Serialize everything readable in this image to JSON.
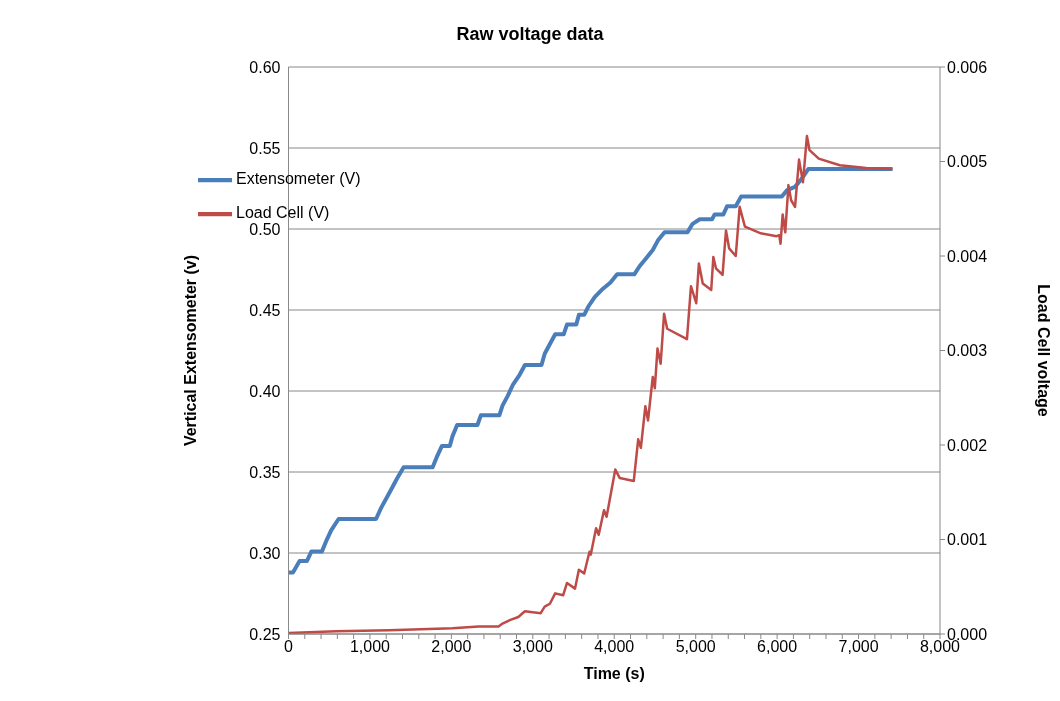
{
  "chart_data": {
    "type": "line",
    "title": "Raw voltage data",
    "xlabel": "Time (s)",
    "ylabel": "Vertical Extensometer (v)",
    "y2label": "Load Cell voltage",
    "xlim": [
      0,
      8000
    ],
    "xticks": [
      0,
      {
        "value": 200,
        "label": null
      },
      {
        "value": 400,
        "label": null
      },
      {
        "value": 600,
        "label": null
      },
      {
        "value": 800,
        "label": null
      },
      {
        "value": 1000,
        "label": "1,000"
      },
      {
        "value": 1200,
        "label": null
      },
      {
        "value": 1400,
        "label": null
      },
      {
        "value": 1600,
        "label": null
      },
      {
        "value": 1800,
        "label": null
      },
      {
        "value": 2000,
        "label": "2,000"
      },
      {
        "value": 2200,
        "label": null
      },
      {
        "value": 2400,
        "label": null
      },
      {
        "value": 2600,
        "label": null
      },
      {
        "value": 2800,
        "label": null
      },
      {
        "value": 3000,
        "label": "3,000"
      },
      {
        "value": 3200,
        "label": null
      },
      {
        "value": 3400,
        "label": null
      },
      {
        "value": 3600,
        "label": null
      },
      {
        "value": 3800,
        "label": null
      },
      {
        "value": 4000,
        "label": "4,000"
      },
      {
        "value": 4200,
        "label": null
      },
      {
        "value": 4400,
        "label": null
      },
      {
        "value": 4600,
        "label": null
      },
      {
        "value": 4800,
        "label": null
      },
      {
        "value": 5000,
        "label": "5,000"
      },
      {
        "value": 5200,
        "label": null
      },
      {
        "value": 5400,
        "label": null
      },
      {
        "value": 5600,
        "label": null
      },
      {
        "value": 5800,
        "label": null
      },
      {
        "value": 6000,
        "label": "6,000"
      },
      {
        "value": 6200,
        "label": null
      },
      {
        "value": 6400,
        "label": null
      },
      {
        "value": 6600,
        "label": null
      },
      {
        "value": 6800,
        "label": null
      },
      {
        "value": 7000,
        "label": "7,000"
      },
      {
        "value": 7200,
        "label": null
      },
      {
        "value": 7400,
        "label": null
      },
      {
        "value": 7600,
        "label": null
      },
      {
        "value": 7800,
        "label": null
      },
      {
        "value": 8000,
        "label": "8,000"
      }
    ],
    "ylim": [
      0.25,
      0.6
    ],
    "yticks": [
      0.25,
      {
        "value": 0.3,
        "label": "0.30"
      },
      0.35,
      {
        "value": 0.4,
        "label": "0.40"
      },
      0.45,
      {
        "value": 0.5,
        "label": "0.50"
      },
      0.55,
      {
        "value": 0.6,
        "label": "0.60"
      }
    ],
    "y2lim": [
      0,
      0.006
    ],
    "y2ticks": [
      {
        "value": 0,
        "label": "0.000"
      },
      0.001,
      0.002,
      0.003,
      0.004,
      0.005,
      0.006
    ],
    "grid": "y",
    "legend": "top left",
    "marker": "none",
    "line_style": "solid",
    "series": [
      {
        "name": "Extensometer (V)",
        "color": "#4a7ebb",
        "x": [
          0,
          55,
          136,
          226,
          282,
          411,
          460,
          524,
          615,
          1075,
          1139,
          1204,
          1269,
          1333,
          1414,
          1770,
          1819,
          1883,
          1981,
          2013,
          2071,
          2320,
          2362,
          2589,
          2628,
          2692,
          2757,
          2838,
          2903,
          3107,
          3146,
          3210,
          3275,
          3379,
          3420,
          3534,
          3566,
          3631,
          3680,
          3760,
          3858,
          3954,
          4035,
          4246,
          4311,
          4392,
          4473,
          4537,
          4618,
          4900,
          4958,
          5049,
          5201,
          5233,
          5340,
          5385,
          5492,
          5557,
          6058,
          6123,
          6220,
          6301,
          6382,
          6770,
          7417
        ],
        "values": [
          0.288,
          0.288,
          0.295,
          0.295,
          0.301,
          0.301,
          0.307,
          0.314,
          0.321,
          0.321,
          0.328,
          0.334,
          0.34,
          0.346,
          0.353,
          0.353,
          0.359,
          0.366,
          0.366,
          0.372,
          0.379,
          0.379,
          0.385,
          0.385,
          0.391,
          0.397,
          0.404,
          0.41,
          0.416,
          0.416,
          0.423,
          0.429,
          0.435,
          0.435,
          0.441,
          0.441,
          0.447,
          0.447,
          0.452,
          0.458,
          0.463,
          0.467,
          0.472,
          0.472,
          0.477,
          0.482,
          0.487,
          0.493,
          0.498,
          0.498,
          0.503,
          0.506,
          0.506,
          0.509,
          0.509,
          0.514,
          0.514,
          0.52,
          0.52,
          0.524,
          0.526,
          0.531,
          0.537,
          0.537,
          0.537
        ]
      },
      {
        "name": "Load Cell  (V)",
        "color": "#be4b48",
        "axis": "y2",
        "x": [
          0,
          589,
          1236,
          2013,
          2337,
          2580,
          2628,
          2725,
          2822,
          2903,
          3097,
          3146,
          3210,
          3275,
          3372,
          3420,
          3518,
          3566,
          3631,
          3696,
          3712,
          3777,
          3809,
          3874,
          3906,
          4013,
          4068,
          4240,
          4294,
          4327,
          4382,
          4415,
          4473,
          4498,
          4531,
          4570,
          4612,
          4650,
          4893,
          4942,
          5007,
          5039,
          5087,
          5191,
          5217,
          5249,
          5330,
          5372,
          5411,
          5492,
          5540,
          5605,
          5799,
          5993,
          6026,
          6042,
          6068,
          6100,
          6139,
          6172,
          6220,
          6269,
          6317,
          6366,
          6398,
          6511,
          6770,
          7094,
          7417
        ],
        "values": [
          1e-05,
          3e-05,
          4e-05,
          6e-05,
          8e-05,
          8e-05,
          0.00011,
          0.00015,
          0.00018,
          0.00024,
          0.00022,
          0.00029,
          0.00032,
          0.00043,
          0.00041,
          0.00054,
          0.00048,
          0.00068,
          0.00064,
          0.00087,
          0.00084,
          0.00112,
          0.00105,
          0.00131,
          0.00124,
          0.00174,
          0.00165,
          0.00162,
          0.00206,
          0.00197,
          0.00241,
          0.00226,
          0.00272,
          0.0026,
          0.00302,
          0.00286,
          0.00339,
          0.00323,
          0.00312,
          0.00368,
          0.0035,
          0.00392,
          0.00371,
          0.00364,
          0.00399,
          0.00387,
          0.0038,
          0.00427,
          0.00408,
          0.004,
          0.00452,
          0.00431,
          0.00424,
          0.00421,
          0.00422,
          0.00413,
          0.00444,
          0.00425,
          0.00475,
          0.00459,
          0.00452,
          0.00502,
          0.00478,
          0.00527,
          0.00512,
          0.00503,
          0.00496,
          0.00493,
          0.00492
        ]
      }
    ]
  }
}
